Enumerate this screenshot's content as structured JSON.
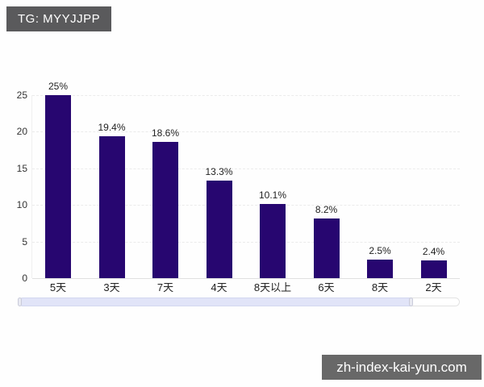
{
  "header": {
    "badge": "TG: MYYJJPP"
  },
  "watermark": {
    "text": "zh-index-kai-yun.com"
  },
  "scrollbar": {
    "thumb_percent": 89.4
  },
  "colors": {
    "bar": "#270670",
    "badge_bg": "#5a5a5c",
    "watermark_bg": "#686868",
    "scroll_thumb": "#e1e4f8"
  },
  "chart_data": {
    "type": "bar",
    "categories": [
      "5天",
      "3天",
      "7天",
      "4天",
      "8天以上",
      "6天",
      "8天",
      "2天"
    ],
    "values": [
      25,
      19.4,
      18.6,
      13.3,
      10.1,
      8.2,
      2.5,
      2.4
    ],
    "value_labels": [
      "25%",
      "19.4%",
      "18.6%",
      "13.3%",
      "10.1%",
      "8.2%",
      "2.5%",
      "2.4%"
    ],
    "title": "",
    "xlabel": "",
    "ylabel": "",
    "ylim": [
      0,
      25
    ],
    "yticks": [
      0,
      5,
      10,
      15,
      20,
      25
    ],
    "grid": true,
    "grid_style": "dashed",
    "legend": false
  }
}
